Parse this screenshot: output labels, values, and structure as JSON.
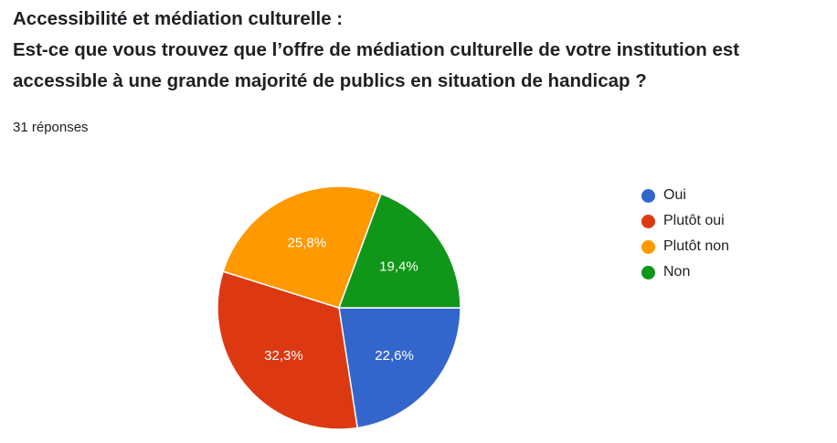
{
  "question": {
    "title_lines": [
      "Accessibilité et médiation culturelle :",
      "Est-ce que vous trouvez que l’offre de médiation culturelle de votre institution est",
      "accessible à une grande majorité de publics en situation de handicap ?"
    ],
    "response_count": "31 réponses"
  },
  "chart_data": {
    "type": "pie",
    "categories": [
      "Oui",
      "Plutôt oui",
      "Plutôt non",
      "Non"
    ],
    "values": [
      22.6,
      32.3,
      25.8,
      19.4
    ],
    "labels": [
      "22,6%",
      "32,3%",
      "25,8%",
      "19,4%"
    ],
    "colors": [
      "#3366CC",
      "#DC3912",
      "#FF9900",
      "#109618"
    ],
    "legend_position": "right"
  }
}
